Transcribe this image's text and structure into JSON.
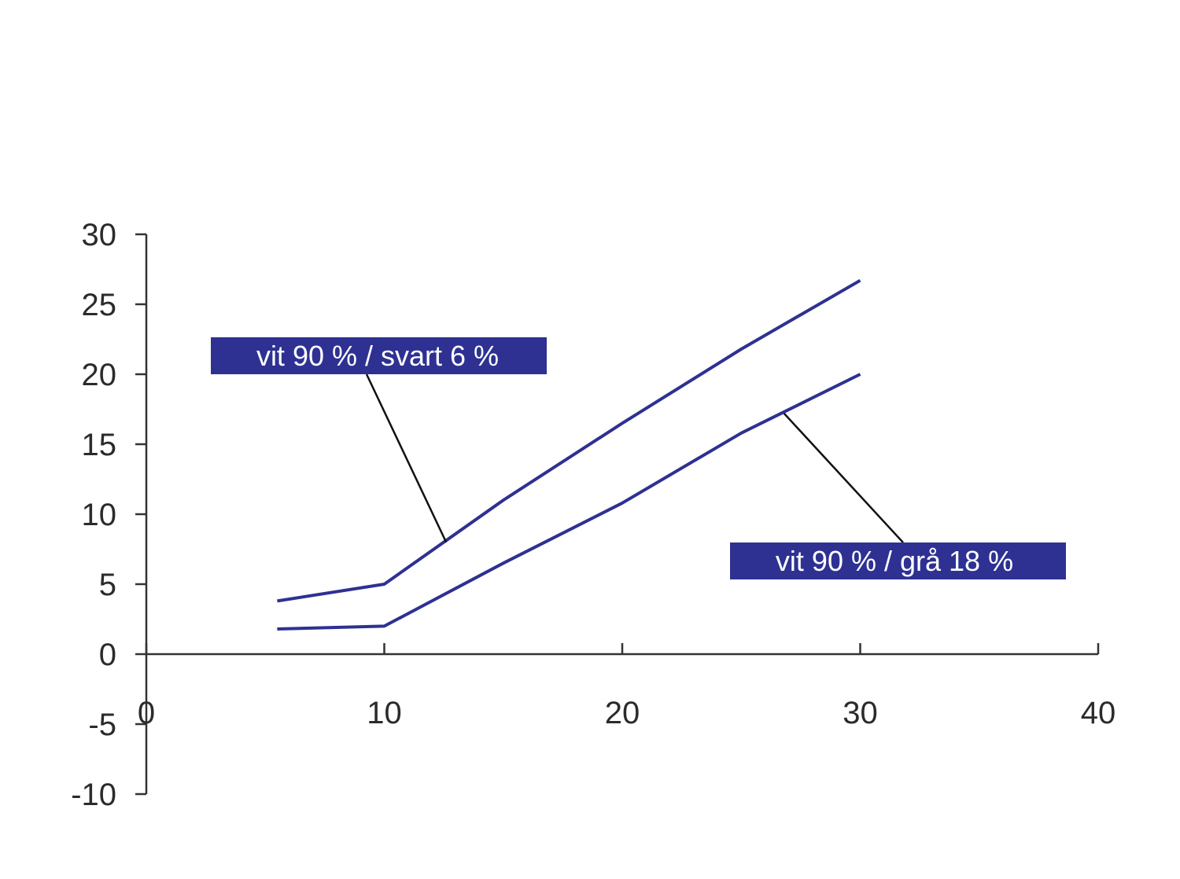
{
  "chart_data": {
    "type": "line",
    "title": "",
    "xlabel": "",
    "ylabel": "",
    "xlim": [
      0,
      40
    ],
    "ylim": [
      -10,
      30
    ],
    "x_ticks": [
      0,
      10,
      20,
      30,
      40
    ],
    "y_ticks": [
      30,
      25,
      20,
      15,
      10,
      5,
      0,
      -5,
      -10
    ],
    "x_tick_labels": [
      "0",
      "10",
      "20",
      "30",
      "40"
    ],
    "y_tick_labels": [
      "30",
      "25",
      "20",
      "15",
      "10",
      "5",
      "0",
      "-5",
      "-10"
    ],
    "grid": false,
    "legend": "none",
    "line_color": "#2e3192",
    "axis_color": "#333333",
    "series": [
      {
        "name": "vit 90 % / svart 6 %",
        "x": [
          5.5,
          10,
          15,
          20,
          25,
          30
        ],
        "y": [
          3.8,
          5,
          11,
          16.5,
          21.8,
          26.7
        ]
      },
      {
        "name": "vit 90 % / grå 18 %",
        "x": [
          5.5,
          10,
          15,
          20,
          25,
          30
        ],
        "y": [
          1.8,
          2,
          6.5,
          10.8,
          15.8,
          20
        ]
      }
    ],
    "annotations": [
      {
        "text": "vit 90 % / svart 6 %",
        "series_index": 0,
        "anchor_x": 12.6,
        "anchor_y": 8,
        "box_fill": "#2e3192",
        "text_color": "#ffffff"
      },
      {
        "text": "vit 90 % / grå 18 %",
        "series_index": 1,
        "anchor_x": 26.8,
        "anchor_y": 17.2,
        "box_fill": "#2e3192",
        "text_color": "#ffffff"
      }
    ]
  }
}
